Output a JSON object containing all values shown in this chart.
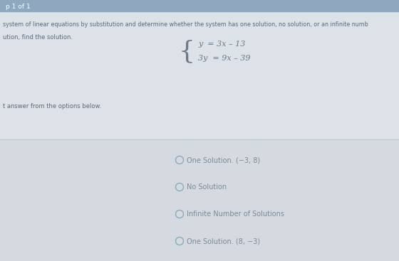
{
  "bg_color": "#dce2e8",
  "bg_lower": "#d0d6dc",
  "top_bar_color": "#8fa8bf",
  "top_bar_text": "p 1 of 1",
  "line1": "system of linear equations by substitution and determine whether the system has one solution, no solution, or an infinite numb",
  "line2": "ution, find the solution.",
  "line3": "t answer from the options below.",
  "eq_line1": "y  = 3x – 13",
  "eq_line2": "3y  = 9x – 39",
  "options": [
    "One Solution. (−3, 8)",
    "No Solution",
    "Infinite Number of Solutions",
    "One Solution. (8, −3)"
  ],
  "text_color": "#5a6a78",
  "circle_color": "#8aabbf",
  "divider_color": "#bcc5cc",
  "title_text_color": "#ffffff",
  "eq_text_color": "#6a7a88",
  "option_text_color": "#7a8a98"
}
